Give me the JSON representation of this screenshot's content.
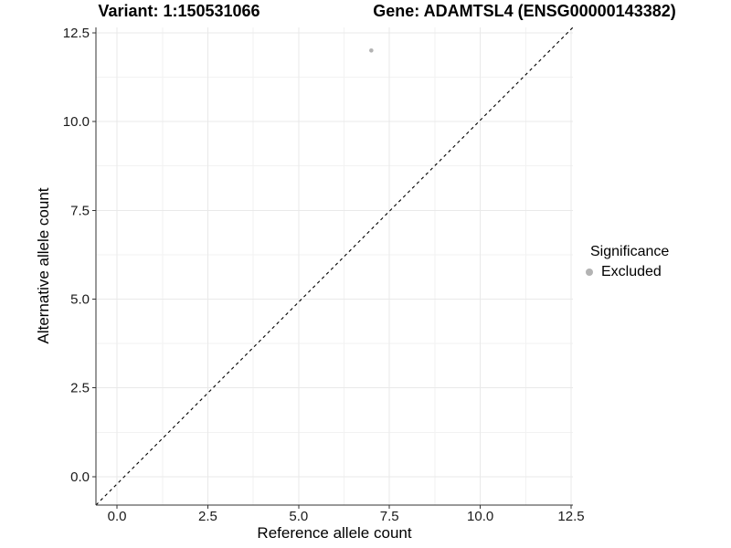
{
  "header": {
    "variant_title": "Variant: 1:150531066",
    "gene_title": "Gene: ADAMTSL4 (ENSG00000143382)"
  },
  "chart_data": {
    "type": "scatter",
    "xlabel": "Reference allele count",
    "ylabel": "Alternative allele count",
    "xlim": [
      -0.58,
      12.55
    ],
    "ylim": [
      -0.8,
      12.65
    ],
    "x_ticks": [
      0,
      2.5,
      5,
      7.5,
      10,
      12.5
    ],
    "x_tick_labels": [
      "0.0",
      "2.5",
      "5.0",
      "7.5",
      "10.0",
      "12.5"
    ],
    "y_ticks": [
      0,
      2.5,
      5,
      7.5,
      10,
      12.5
    ],
    "y_tick_labels": [
      "0.0",
      "2.5",
      "5.0",
      "7.5",
      "10.0",
      "12.5"
    ],
    "x_minor_ticks": [
      1.25,
      3.75,
      6.25,
      8.75,
      11.25
    ],
    "y_minor_ticks": [
      1.25,
      3.75,
      6.25,
      8.75,
      11.25
    ],
    "grid": "major+minor",
    "legend_position": "right",
    "series": [
      {
        "name": "Excluded",
        "color": "#b3b3b3",
        "points": [
          {
            "x": 7,
            "y": 12
          }
        ]
      }
    ],
    "reference_line": {
      "desc": "y = x identity line",
      "style": "dashed",
      "color": "#000000"
    },
    "legend": {
      "title": "Significance",
      "items": [
        {
          "label": "Excluded",
          "color": "#b3b3b3",
          "marker": "circle"
        }
      ]
    },
    "colors": {
      "axis": "#333333",
      "grid_major": "#e9e9e9",
      "grid_minor": "#f2f2f2",
      "tick_label": "#1a1a1a",
      "point": "#b3b3b3"
    }
  }
}
